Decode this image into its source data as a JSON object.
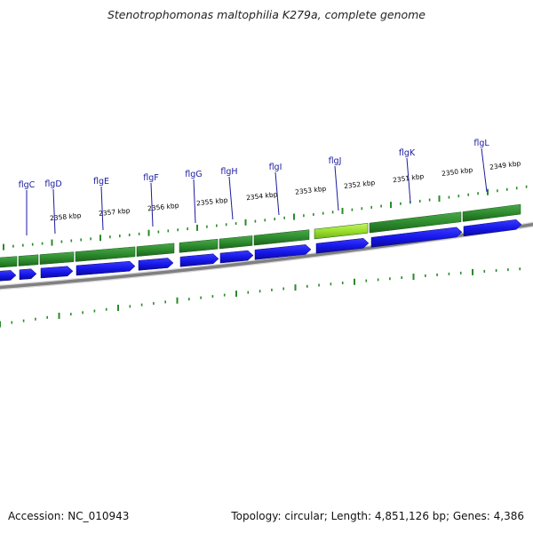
{
  "title": "Stenotrophomonas maltophilia K279a, complete genome",
  "footer": {
    "accession": "Accession: NC_010943",
    "topology": "Topology: circular; Length: 4,851,126 bp; Genes: 4,386"
  },
  "colors": {
    "cds_forward": "#2e8b2e",
    "cds_forward_highlight": "#9adf2a",
    "gene_arrow": "#1515e6",
    "backbone": "#808080",
    "tick": "#2a8a2a",
    "gene_label": "#1a1aa0"
  },
  "kbp_labels": [
    "2358 kbp",
    "2357 kbp",
    "2356 kbp",
    "2355 kbp",
    "2354 kbp",
    "2353 kbp",
    "2352 kbp",
    "2351 kbp",
    "2350 kbp",
    "2349 kbp"
  ],
  "gene_labels": [
    "flgC",
    "flgD",
    "flgE",
    "flgF",
    "flgG",
    "flgH",
    "flgI",
    "flgJ",
    "flgK",
    "flgL"
  ]
}
